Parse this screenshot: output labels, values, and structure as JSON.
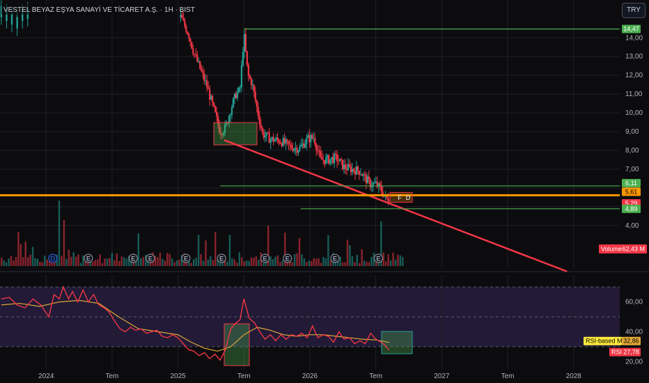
{
  "header": {
    "title": "VESTEL BEYAZ EŞYA SANAYİ VE TİCARET A.Ş. · 1H · BIST",
    "currency": "TRY"
  },
  "colors": {
    "background": "#0c0c0f",
    "up": "#22a196",
    "down": "#f23645",
    "grid": "#1e2028",
    "green_line": "#4caf50",
    "orange_line": "#ff9800",
    "trendline": "#f23645",
    "rsi": "#f23645",
    "rsi_ma": "#e2a837",
    "rsi_band": "#2a1f45"
  },
  "chart_data": [
    {
      "type": "candlestick",
      "x_ticks": [
        "2024",
        "Tem",
        "2025",
        "Tem",
        "2026",
        "Tem",
        "2027",
        "Tem",
        "2028"
      ],
      "y_ticks": [
        "4,00",
        "5,00",
        "6,00",
        "7,00",
        "8,00",
        "9,00",
        "10,00",
        "11,00",
        "12,00",
        "13,00",
        "14,00"
      ],
      "ylim": [
        3.4,
        14.9
      ],
      "close_path": [
        [
          2025.02,
          15.1
        ],
        [
          2025.08,
          14.2
        ],
        [
          2025.12,
          13.2
        ],
        [
          2025.17,
          12.3
        ],
        [
          2025.22,
          11.4
        ],
        [
          2025.27,
          10.2
        ],
        [
          2025.32,
          9.0
        ],
        [
          2025.36,
          9.2
        ],
        [
          2025.4,
          10.2
        ],
        [
          2025.44,
          11.0
        ],
        [
          2025.47,
          11.2
        ],
        [
          2025.5,
          14.2
        ],
        [
          2025.53,
          12.0
        ],
        [
          2025.56,
          11.6
        ],
        [
          2025.6,
          10.2
        ],
        [
          2025.64,
          8.9
        ],
        [
          2025.7,
          8.6
        ],
        [
          2025.78,
          8.5
        ],
        [
          2025.85,
          8.2
        ],
        [
          2025.92,
          8.1
        ],
        [
          2025.98,
          8.6
        ],
        [
          2026.03,
          8.7
        ],
        [
          2026.08,
          7.5
        ],
        [
          2026.14,
          7.5
        ],
        [
          2026.2,
          7.6
        ],
        [
          2026.26,
          7.1
        ],
        [
          2026.32,
          7.0
        ],
        [
          2026.38,
          6.9
        ],
        [
          2026.42,
          6.5
        ],
        [
          2026.46,
          6.2
        ],
        [
          2026.5,
          6.2
        ],
        [
          2026.54,
          5.9
        ],
        [
          2026.57,
          5.5
        ],
        [
          2026.6,
          5.3
        ]
      ],
      "markers": [
        {
          "label": "14,47",
          "value": 14.47,
          "color": "#4caf50",
          "x_start": 2025.5
        },
        {
          "label": "6,11",
          "value": 6.11,
          "color": "#4caf50",
          "x_start": 2025.32
        },
        {
          "label": "5,61",
          "value": 5.61,
          "color": "#ff9800",
          "x_start": 2023.65
        },
        {
          "label": "5,29",
          "value": 5.29,
          "color": "#f23645",
          "x_start": null
        },
        {
          "label": "4,89",
          "value": 4.89,
          "color": "#4caf50",
          "x_start": 2025.93
        }
      ],
      "trendline": {
        "x1": 2025.35,
        "y1": 8.55,
        "x2": 2027.95,
        "y2": 1.55
      },
      "event_badges": [
        {
          "label": "D",
          "x": 2024.05
        },
        {
          "label": "E",
          "x": 2024.32
        },
        {
          "label": "E",
          "x": 2024.66
        },
        {
          "label": "E",
          "x": 2024.79
        },
        {
          "label": "E",
          "x": 2025.06
        },
        {
          "label": "E",
          "x": 2025.33
        },
        {
          "label": "E",
          "x": 2025.66
        },
        {
          "label": "E",
          "x": 2025.83
        },
        {
          "label": "E",
          "x": 2026.19
        },
        {
          "label": "E",
          "x": 2026.52
        }
      ],
      "current_markers": [
        "F",
        "D"
      ],
      "volume_label": "Volume",
      "volume_value": "62,43 M"
    },
    {
      "type": "line",
      "name": "RSI",
      "y_ticks": [
        "20,00",
        "40,00",
        "60,00"
      ],
      "ylim": [
        15,
        78
      ],
      "band": [
        30,
        70
      ],
      "midline": 50,
      "rsi_label": "RSI",
      "rsi_value": "27,78",
      "ma_label": "RSI-based MA",
      "ma_value": "32,86",
      "rsi": [
        [
          2023.66,
          62
        ],
        [
          2023.72,
          63
        ],
        [
          2023.78,
          58
        ],
        [
          2023.84,
          56
        ],
        [
          2023.9,
          62
        ],
        [
          2023.96,
          58
        ],
        [
          2024.02,
          50
        ],
        [
          2024.06,
          65
        ],
        [
          2024.1,
          62
        ],
        [
          2024.13,
          70
        ],
        [
          2024.17,
          62
        ],
        [
          2024.2,
          67
        ],
        [
          2024.24,
          60
        ],
        [
          2024.28,
          68
        ],
        [
          2024.32,
          60
        ],
        [
          2024.36,
          65
        ],
        [
          2024.4,
          58
        ],
        [
          2024.44,
          56
        ],
        [
          2024.48,
          53
        ],
        [
          2024.52,
          47
        ],
        [
          2024.56,
          42
        ],
        [
          2024.6,
          40
        ],
        [
          2024.64,
          43
        ],
        [
          2024.68,
          41
        ],
        [
          2024.72,
          42
        ],
        [
          2024.76,
          39
        ],
        [
          2024.8,
          40
        ],
        [
          2024.84,
          41
        ],
        [
          2024.88,
          37
        ],
        [
          2024.92,
          36
        ],
        [
          2024.96,
          38
        ],
        [
          2025.0,
          36
        ],
        [
          2025.04,
          32
        ],
        [
          2025.08,
          28
        ],
        [
          2025.12,
          27
        ],
        [
          2025.16,
          24
        ],
        [
          2025.2,
          26
        ],
        [
          2025.24,
          22
        ],
        [
          2025.28,
          25
        ],
        [
          2025.32,
          21
        ],
        [
          2025.36,
          28
        ],
        [
          2025.4,
          42
        ],
        [
          2025.44,
          46
        ],
        [
          2025.47,
          48
        ],
        [
          2025.5,
          62
        ],
        [
          2025.54,
          49
        ],
        [
          2025.58,
          46
        ],
        [
          2025.62,
          40
        ],
        [
          2025.66,
          35
        ],
        [
          2025.7,
          38
        ],
        [
          2025.74,
          34
        ],
        [
          2025.78,
          38
        ],
        [
          2025.82,
          35
        ],
        [
          2025.86,
          38
        ],
        [
          2025.9,
          37
        ],
        [
          2025.94,
          39
        ],
        [
          2025.98,
          36
        ],
        [
          2026.02,
          44
        ],
        [
          2026.06,
          36
        ],
        [
          2026.1,
          38
        ],
        [
          2026.14,
          37
        ],
        [
          2026.18,
          33
        ],
        [
          2026.22,
          40
        ],
        [
          2026.26,
          35
        ],
        [
          2026.3,
          36
        ],
        [
          2026.34,
          32
        ],
        [
          2026.38,
          34
        ],
        [
          2026.42,
          32
        ],
        [
          2026.46,
          39
        ],
        [
          2026.5,
          35
        ],
        [
          2026.54,
          33
        ],
        [
          2026.57,
          31
        ],
        [
          2026.6,
          27.78
        ]
      ],
      "rsi_ma": [
        [
          2023.66,
          58
        ],
        [
          2023.8,
          59
        ],
        [
          2023.95,
          57
        ],
        [
          2024.1,
          60
        ],
        [
          2024.25,
          61
        ],
        [
          2024.4,
          59
        ],
        [
          2024.55,
          50
        ],
        [
          2024.7,
          42
        ],
        [
          2024.85,
          40
        ],
        [
          2025.0,
          38
        ],
        [
          2025.1,
          33
        ],
        [
          2025.2,
          29
        ],
        [
          2025.3,
          27
        ],
        [
          2025.4,
          30
        ],
        [
          2025.5,
          38
        ],
        [
          2025.6,
          43
        ],
        [
          2025.7,
          41
        ],
        [
          2025.8,
          38
        ],
        [
          2025.9,
          37
        ],
        [
          2026.0,
          38
        ],
        [
          2026.1,
          38
        ],
        [
          2026.2,
          37
        ],
        [
          2026.3,
          36
        ],
        [
          2026.4,
          35
        ],
        [
          2026.5,
          34.5
        ],
        [
          2026.6,
          32.86
        ]
      ]
    }
  ]
}
